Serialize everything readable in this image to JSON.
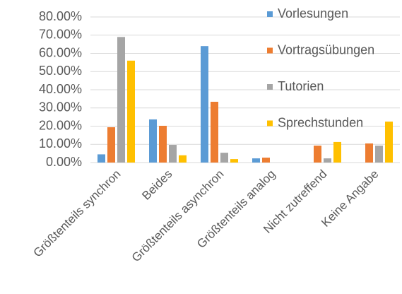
{
  "chart_data": {
    "type": "bar",
    "categories": [
      "Größtenteils synchron",
      "Beides",
      "Größtenteils asynchron",
      "Größtenteils analog",
      "Nicht zutreffend",
      "Keine Angabe"
    ],
    "series": [
      {
        "name": "Vorlesungen",
        "color": "#5b9bd5",
        "values": [
          4.5,
          23.7,
          64,
          2.3,
          0,
          0
        ]
      },
      {
        "name": "Vortragsübungen",
        "color": "#ed7d31",
        "values": [
          19.4,
          20.2,
          33.4,
          2.7,
          9.3,
          10.5
        ]
      },
      {
        "name": "Tutorien",
        "color": "#a5a5a5",
        "values": [
          69,
          9.7,
          5.4,
          0,
          2.3,
          9.3
        ]
      },
      {
        "name": "Sprechstunden",
        "color": "#ffc000",
        "values": [
          56,
          4,
          1.9,
          0,
          11.3,
          22.5
        ]
      }
    ],
    "ylim": [
      0,
      80
    ],
    "yticks": [
      {
        "value": 0,
        "label": "0.00%"
      },
      {
        "value": 10,
        "label": "10.00%"
      },
      {
        "value": 20,
        "label": "20.00%"
      },
      {
        "value": 30,
        "label": "30.00%"
      },
      {
        "value": 40,
        "label": "40.00%"
      },
      {
        "value": 50,
        "label": "50.00%"
      },
      {
        "value": 60,
        "label": "60.00%"
      },
      {
        "value": 70,
        "label": "70.00%"
      },
      {
        "value": 80,
        "label": "80.00%"
      }
    ],
    "grid": true
  }
}
